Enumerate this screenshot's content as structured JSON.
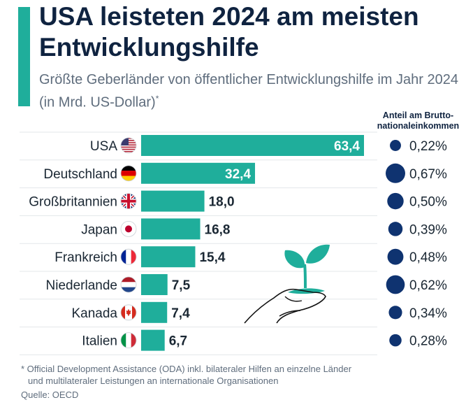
{
  "title": "USA leisteten 2024 am meisten Entwicklungshilfe",
  "subtitle": "Größte Geberländer von öffentlicher Entwicklungshilfe im Jahr 2024 (in Mrd. US-Dollar)",
  "subtitle_mark": "*",
  "share_column_label": "Anteil am Bruttonationaleinkommen",
  "share_column_label_line1": "Anteil am Brutto-",
  "share_column_label_line2": "nationaleinkommen",
  "footnote_line1": "* Official Development Assistance (ODA) inkl. bilateraler Hilfen an einzelne Länder",
  "footnote_line2": "und multilateraler Leistungen an internationale Organisationen",
  "source": "Quelle: OECD",
  "colors": {
    "accent": "#1fae9b",
    "bar": "#1fae9b",
    "dot": "#0f3370",
    "title": "#0f2340",
    "text": "#5f6d7d"
  },
  "chart_data": {
    "type": "bar",
    "orientation": "horizontal",
    "categories": [
      "USA",
      "Deutschland",
      "Großbritannien",
      "Japan",
      "Frankreich",
      "Niederlande",
      "Kanada",
      "Italien"
    ],
    "values": [
      63.4,
      32.4,
      18.0,
      16.8,
      15.4,
      7.5,
      7.4,
      6.7
    ],
    "value_labels": [
      "63,4",
      "32,4",
      "18,0",
      "16,8",
      "15,4",
      "7,5",
      "7,4",
      "6,7"
    ],
    "flags": [
      "us-flag-icon",
      "de-flag-icon",
      "gb-flag-icon",
      "jp-flag-icon",
      "fr-flag-icon",
      "nl-flag-icon",
      "ca-flag-icon",
      "it-flag-icon"
    ],
    "gni_share_percent": [
      0.22,
      0.67,
      0.5,
      0.39,
      0.48,
      0.62,
      0.34,
      0.28
    ],
    "gni_share_labels": [
      "0,22%",
      "0,67%",
      "0,50%",
      "0,39%",
      "0,48%",
      "0,62%",
      "0,34%",
      "0,28%"
    ],
    "xlim": [
      0,
      63.4
    ],
    "grid": false,
    "decoration": "hand-holding-seedling-icon"
  }
}
